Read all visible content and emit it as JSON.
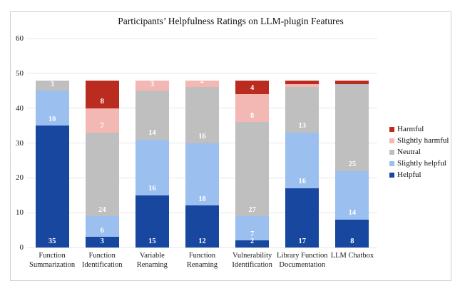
{
  "title": "Participants’ Helpfulness Ratings on LLM-plugin Features",
  "chart_data": {
    "type": "bar",
    "stacked": true,
    "title": "Participants’ Helpfulness Ratings on LLM-plugin Features",
    "categories": [
      "Function Summarization",
      "Function Identification",
      "Variable Renaming",
      "Function Renaming",
      "Vulnerability Identification",
      "Library Function Documentation",
      "LLM Chatbox"
    ],
    "series": [
      {
        "name": "Helpful",
        "color": "#17479E",
        "values": [
          35,
          3,
          15,
          12,
          2,
          17,
          8
        ]
      },
      {
        "name": "Slightly helpful",
        "color": "#9BBFEF",
        "values": [
          10,
          6,
          16,
          18,
          7,
          16,
          14
        ]
      },
      {
        "name": "Neutral",
        "color": "#BFBFBF",
        "values": [
          3,
          24,
          14,
          16,
          27,
          13,
          25
        ]
      },
      {
        "name": "Slightly harmful",
        "color": "#F3B8B4",
        "values": [
          0,
          7,
          3,
          2,
          8,
          1,
          0
        ]
      },
      {
        "name": "Harmful",
        "color": "#BB2C20",
        "values": [
          0,
          8,
          0,
          0,
          4,
          1,
          1
        ]
      }
    ],
    "ylim": [
      0,
      60
    ],
    "y_ticks": [
      0,
      10,
      20,
      30,
      40,
      50,
      60
    ],
    "grid": true,
    "legend_position": "right",
    "legend_order_top_to_bottom": [
      "Harmful",
      "Slightly harmful",
      "Neutral",
      "Slightly helpful",
      "Helpful"
    ],
    "data_label_color": "#ffffff",
    "min_value_labeled": 2,
    "frame_border_color": "#cfcfcf",
    "grid_color": "#e6e6e6"
  }
}
